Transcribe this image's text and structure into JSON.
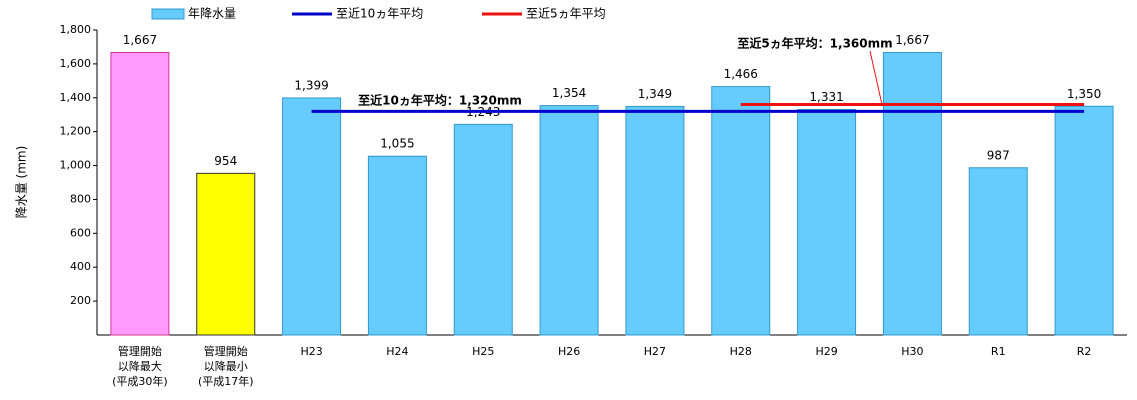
{
  "chart_data": {
    "type": "bar",
    "y_label": "降水量 (mm)",
    "categories": [
      "管理開始\n以降最大\n(平成30年)",
      "管理開始\n以降最小\n(平成17年)",
      "H23",
      "H24",
      "H25",
      "H26",
      "H27",
      "H28",
      "H29",
      "H30",
      "R1",
      "R2"
    ],
    "series": [
      {
        "name": "年降水量",
        "color": "#66ccff",
        "colors": [
          "#ff99ff",
          "#ffff00",
          "#66ccff",
          "#66ccff",
          "#66ccff",
          "#66ccff",
          "#66ccff",
          "#66ccff",
          "#66ccff",
          "#66ccff",
          "#66ccff",
          "#66ccff"
        ],
        "values": [
          1667,
          954,
          1399,
          1055,
          1243,
          1354,
          1349,
          1466,
          1331,
          1667,
          987,
          1350
        ],
        "value_labels": [
          "1,667",
          "954",
          "1,399",
          "1,055",
          "1,243",
          "1,354",
          "1,349",
          "1,466",
          "1,331",
          "1,667",
          "987",
          "1,350"
        ]
      },
      {
        "name": "至近10ヵ年平均",
        "color": "#0000cc",
        "type": "line",
        "values": [
          null,
          null,
          1320,
          1320,
          1320,
          1320,
          1320,
          1320,
          1320,
          1320,
          1320,
          1320
        ]
      },
      {
        "name": "至近5ヵ年平均",
        "color": "#ee1111",
        "type": "line",
        "values": [
          null,
          null,
          null,
          null,
          null,
          null,
          null,
          1360,
          1360,
          1360,
          1360,
          1360
        ]
      }
    ],
    "annotations": [
      {
        "text": "至近10ヵ年平均：1,320mm",
        "color": "#0000cc"
      },
      {
        "text": "至近5ヵ年平均：1,360mm",
        "color": "#ee1111"
      }
    ],
    "ylim": [
      0,
      1800
    ],
    "yticks": [
      200,
      400,
      600,
      800,
      {
        "value": 1000,
        "label": "1,000"
      },
      {
        "value": 1200,
        "label": "1,200"
      },
      {
        "value": 1400,
        "label": "1,400"
      },
      {
        "value": 1600,
        "label": "1,600"
      },
      {
        "value": 1800,
        "label": "1,800"
      }
    ]
  }
}
